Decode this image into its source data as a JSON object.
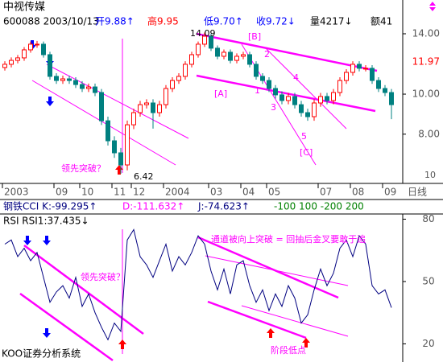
{
  "header": {
    "name": "中视传媒",
    "code_date": "600088 2003/10/13",
    "open": "开9.88↑",
    "high": "高9.95",
    "low": "低9.70↑",
    "close": "收9.72↓",
    "volume": "量4217↓",
    "amount": "额41"
  },
  "indicator_bar": {
    "parts": [
      "钢铁CCI K:-99.295↑",
      "D:-111.632↑",
      "J:-74.623↑",
      "-100 100 -200 200"
    ]
  },
  "footer": "KOO证券分析系统",
  "chart_data": [
    {
      "type": "candlestick",
      "log_scale": true,
      "up_color": "#ff0000",
      "down_color": "#008080",
      "categories": [
        "2003",
        null,
        null,
        null,
        null,
        null,
        null,
        null,
        "09",
        null,
        null,
        null,
        "10",
        null,
        null,
        null,
        null,
        "11",
        null,
        null,
        "12",
        null,
        null,
        null,
        null,
        "2004",
        null,
        null,
        null,
        null,
        null,
        null,
        "03",
        null,
        null,
        null,
        null,
        "04",
        null,
        null,
        null,
        "05",
        null,
        null,
        null,
        null,
        null,
        null,
        null,
        "07",
        null,
        null,
        null,
        null,
        "08",
        null,
        null,
        null,
        null,
        "09",
        null
      ],
      "axis_end_label": "日线",
      "open": [
        11.6,
        11.81,
        12.07,
        12.24,
        12.8,
        13.21,
        13.21,
        12.46,
        11.04,
        10.79,
        10.89,
        10.79,
        10.55,
        10.32,
        10.41,
        10.09,
        8.62,
        7.71,
        7.21,
        6.74,
        8.43,
        9.02,
        9.43,
        9.52,
        9.02,
        9.43,
        10.32,
        10.79,
        11.04,
        11.81,
        12.46,
        13.21,
        13.81,
        12.92,
        12.35,
        12.63,
        12.07,
        12.35,
        12.46,
        11.81,
        11.04,
        10.79,
        10.32,
        9.96,
        9.65,
        9.87,
        9.43,
        9.02,
        8.82,
        9.52,
        9.87,
        9.65,
        10.09,
        10.79,
        11.29,
        11.81,
        11.55,
        11.55,
        10.79,
        10.32,
        10.09
      ],
      "high": [
        12.01,
        12.27,
        12.44,
        13.0,
        13.41,
        13.45,
        13.41,
        12.66,
        11.24,
        11.09,
        11.09,
        10.99,
        10.75,
        10.61,
        10.61,
        10.29,
        8.82,
        7.91,
        7.41,
        8.63,
        9.22,
        9.63,
        9.72,
        9.72,
        9.63,
        10.52,
        10.99,
        11.24,
        12.01,
        12.66,
        13.41,
        14.09,
        14.01,
        13.12,
        12.83,
        12.83,
        12.55,
        12.66,
        12.66,
        12.01,
        11.24,
        10.99,
        10.52,
        10.16,
        10.07,
        10.07,
        9.63,
        9.22,
        9.72,
        10.07,
        10.07,
        10.29,
        10.99,
        11.49,
        12.01,
        12.01,
        11.75,
        11.75,
        10.99,
        10.52,
        10.29
      ],
      "low": [
        11.4,
        11.61,
        11.87,
        12.04,
        12.6,
        12.95,
        12.26,
        10.84,
        10.59,
        10.59,
        10.59,
        10.35,
        10.12,
        10.12,
        9.89,
        8.42,
        7.51,
        7.01,
        6.42,
        6.54,
        8.23,
        8.82,
        9.23,
        8.25,
        8.82,
        9.23,
        10.12,
        10.59,
        10.84,
        11.61,
        12.26,
        13.01,
        12.72,
        12.15,
        12.15,
        11.87,
        11.87,
        12.15,
        11.61,
        10.84,
        10.59,
        10.12,
        9.76,
        9.45,
        9.45,
        9.23,
        8.82,
        8.62,
        8.62,
        9.32,
        9.45,
        9.45,
        9.89,
        10.59,
        11.09,
        11.35,
        11.35,
        10.59,
        10.12,
        9.89,
        8.7
      ],
      "close": [
        11.81,
        12.07,
        12.24,
        12.8,
        13.21,
        13.21,
        12.46,
        11.04,
        10.79,
        10.89,
        10.79,
        10.55,
        10.32,
        10.41,
        10.09,
        8.62,
        7.71,
        7.21,
        6.74,
        8.43,
        9.02,
        9.43,
        9.52,
        9.02,
        9.43,
        10.32,
        10.79,
        11.04,
        11.81,
        12.46,
        13.21,
        13.81,
        12.92,
        12.35,
        12.63,
        12.07,
        12.35,
        12.46,
        11.81,
        11.04,
        10.79,
        10.32,
        9.96,
        9.65,
        9.87,
        9.43,
        9.02,
        8.82,
        9.52,
        9.87,
        9.65,
        10.09,
        10.79,
        11.29,
        11.81,
        11.55,
        11.55,
        10.79,
        10.32,
        10.09,
        9.43
      ],
      "ylim": [
        6.08,
        15.45
      ],
      "yticks": [
        {
          "value": 14,
          "label": "14.00"
        },
        {
          "value": 10,
          "label": "10.00"
        },
        {
          "value": 8,
          "label": "8.00"
        }
      ],
      "current_price": 11.97,
      "annotations": [
        "14.09",
        "[B]",
        "[A]",
        "1",
        "2",
        "3",
        "4",
        "5",
        "[C]",
        "6.42",
        "领先突破？",
        "10"
      ]
    },
    {
      "type": "line",
      "title": "RSI RSI1:37.435↓",
      "series": [
        {
          "name": "RSI1",
          "color": "#000080",
          "values": [
            68,
            70,
            62,
            66,
            60,
            64,
            52,
            40,
            45,
            48,
            42,
            52,
            38,
            44,
            35,
            28,
            22,
            30,
            26,
            70,
            75,
            62,
            58,
            52,
            60,
            68,
            55,
            62,
            58,
            64,
            72,
            68,
            55,
            46,
            56,
            44,
            58,
            60,
            48,
            40,
            46,
            36,
            44,
            38,
            48,
            42,
            30,
            34,
            46,
            56,
            48,
            54,
            66,
            70,
            62,
            72,
            68,
            48,
            44,
            46,
            37.435
          ]
        }
      ],
      "ylim": [
        13.2,
        82.5
      ],
      "yticks": [
        80,
        50,
        20
      ],
      "annotations": [
        "通道被向上突破 = 回抽后金叉要敢于追",
        "领先突破？",
        "阶段低点"
      ]
    }
  ]
}
